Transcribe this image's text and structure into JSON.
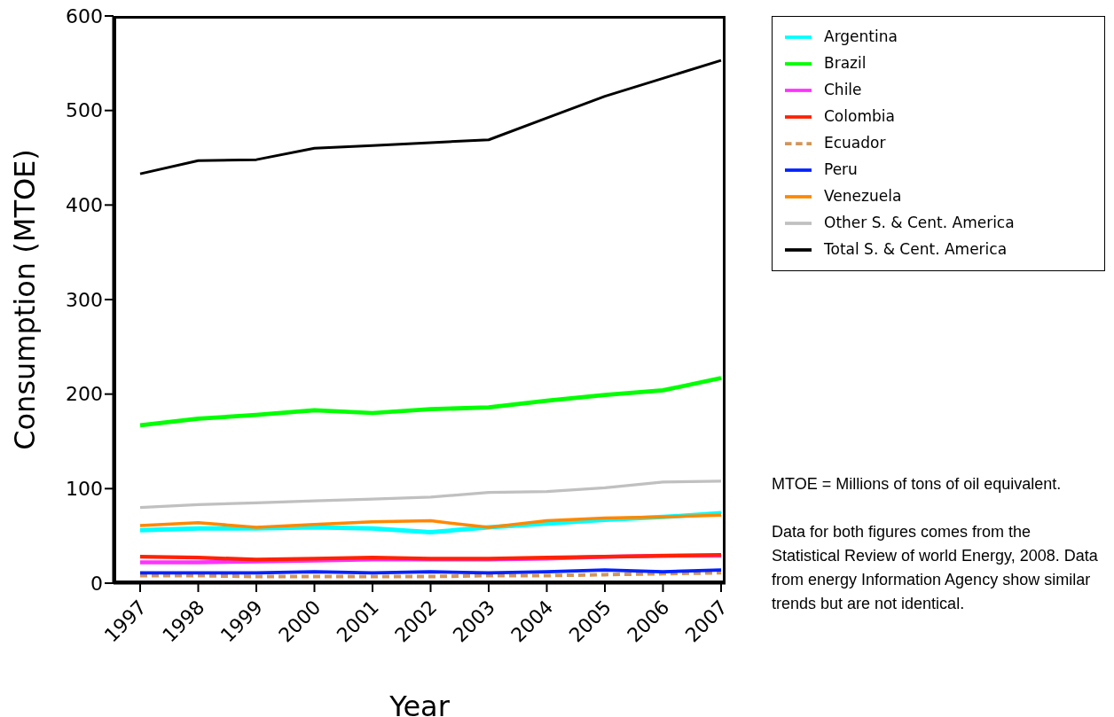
{
  "chart_data": {
    "type": "line",
    "xlabel": "Year",
    "ylabel": "Consumption (MTOE)",
    "categories": [
      "1997",
      "1998",
      "1999",
      "2000",
      "2001",
      "2002",
      "2003",
      "2004",
      "2005",
      "2006",
      "2007"
    ],
    "ylim": [
      0,
      600
    ],
    "yticks": [
      0,
      100,
      200,
      300,
      400,
      500,
      600
    ],
    "grid": false,
    "legend": "right",
    "marker": "none",
    "series": [
      {
        "name": "Argentina",
        "color": "#00ffff",
        "values": [
          56,
          58,
          58,
          59,
          58,
          54,
          59,
          63,
          67,
          70,
          74
        ]
      },
      {
        "name": "Brazil",
        "color": "#00ff00",
        "values": [
          167,
          174,
          178,
          183,
          180,
          184,
          186,
          193,
          199,
          204,
          217
        ]
      },
      {
        "name": "Chile",
        "color": "#ff33ff",
        "values": [
          22,
          22,
          23,
          24,
          25,
          25,
          25,
          26,
          28,
          29,
          29
        ]
      },
      {
        "name": "Colombia",
        "color": "#ff2200",
        "values": [
          28,
          27,
          25,
          26,
          27,
          26,
          26,
          27,
          28,
          29,
          30
        ]
      },
      {
        "name": "Ecuador",
        "color": "#d2955a",
        "line_style": "dashed",
        "values": [
          8,
          8,
          7,
          7,
          7,
          7,
          8,
          8,
          9,
          10,
          11
        ]
      },
      {
        "name": "Peru",
        "color": "#0022ff",
        "values": [
          11,
          11,
          11,
          12,
          11,
          12,
          11,
          12,
          14,
          12,
          14
        ]
      },
      {
        "name": "Venezuela",
        "color": "#ff8800",
        "values": [
          61,
          64,
          59,
          62,
          65,
          66,
          59,
          66,
          69,
          70,
          72
        ]
      },
      {
        "name": "Other S. & Cent. America",
        "color": "#c0c0c0",
        "values": [
          80,
          83,
          85,
          87,
          89,
          91,
          96,
          97,
          101,
          107,
          108
        ]
      },
      {
        "name": "Total S. & Cent. America",
        "color": "#000000",
        "values": [
          433,
          447,
          448,
          460,
          463,
          466,
          469,
          492,
          515,
          534,
          553
        ]
      }
    ],
    "annotations": [
      "MTOE = Millions of tons of oil equivalent.",
      "Data for both figures comes from the Statistical Review of world Energy, 2008. Data from energy Information Agency show similar trends but are not identical."
    ]
  }
}
